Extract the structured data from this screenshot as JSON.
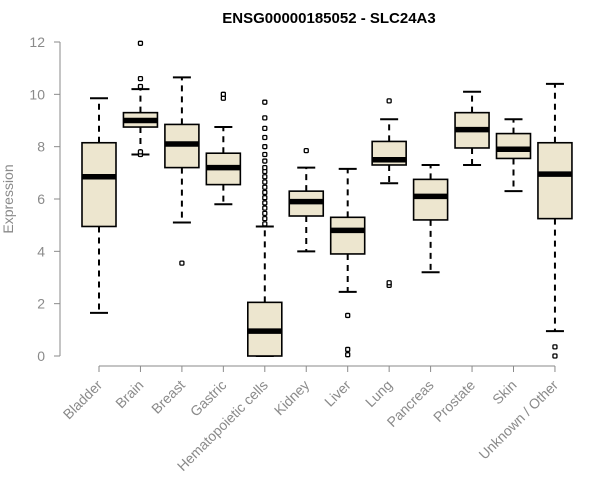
{
  "chart_data": {
    "type": "boxplot",
    "title": "ENSG00000185052 - SLC24A3",
    "xlabel": "",
    "ylabel": "Expression",
    "ylim": [
      0,
      12
    ],
    "yticks": [
      0,
      2,
      4,
      6,
      8,
      10,
      12
    ],
    "box_color": "#ede6cf",
    "categories": [
      "Bladder",
      "Brain",
      "Breast",
      "Gastric",
      "Hematopoietic cells",
      "Kidney",
      "Liver",
      "Lung",
      "Pancreas",
      "Prostate",
      "Skin",
      "Unknown / Other"
    ],
    "series": [
      {
        "name": "Bladder",
        "min": 1.65,
        "q1": 4.95,
        "median": 6.85,
        "q3": 8.15,
        "max": 9.85,
        "outliers": []
      },
      {
        "name": "Brain",
        "min": 7.7,
        "q1": 8.75,
        "median": 9.0,
        "q3": 9.3,
        "max": 10.2,
        "outliers": [
          7.7,
          7.8,
          10.3,
          10.6,
          11.95
        ]
      },
      {
        "name": "Breast",
        "min": 5.1,
        "q1": 7.2,
        "median": 8.1,
        "q3": 8.85,
        "max": 10.65,
        "outliers": [
          3.55
        ]
      },
      {
        "name": "Gastric",
        "min": 5.8,
        "q1": 6.55,
        "median": 7.2,
        "q3": 7.75,
        "max": 8.75,
        "outliers": [
          9.85,
          10.0
        ]
      },
      {
        "name": "Hematopoietic cells",
        "min": 0.0,
        "q1": 0.0,
        "median": 0.95,
        "q3": 2.05,
        "max": 4.95,
        "outliers": [
          5.05,
          5.25,
          5.45,
          5.65,
          5.85,
          6.05,
          6.25,
          6.45,
          6.65,
          6.85,
          7.05,
          7.2,
          7.45,
          7.7,
          8.0,
          8.35,
          8.7,
          9.1,
          9.7
        ]
      },
      {
        "name": "Kidney",
        "min": 4.0,
        "q1": 5.35,
        "median": 5.9,
        "q3": 6.3,
        "max": 7.2,
        "outliers": [
          7.85
        ]
      },
      {
        "name": "Liver",
        "min": 2.45,
        "q1": 3.9,
        "median": 4.8,
        "q3": 5.3,
        "max": 7.15,
        "outliers": [
          0.05,
          0.25,
          1.55
        ]
      },
      {
        "name": "Lung",
        "min": 6.6,
        "q1": 7.3,
        "median": 7.5,
        "q3": 8.2,
        "max": 9.05,
        "outliers": [
          2.7,
          2.8,
          9.75
        ]
      },
      {
        "name": "Pancreas",
        "min": 3.2,
        "q1": 5.2,
        "median": 6.1,
        "q3": 6.75,
        "max": 7.3,
        "outliers": []
      },
      {
        "name": "Prostate",
        "min": 7.3,
        "q1": 7.95,
        "median": 8.65,
        "q3": 9.3,
        "max": 10.1,
        "outliers": []
      },
      {
        "name": "Skin",
        "min": 6.3,
        "q1": 7.55,
        "median": 7.9,
        "q3": 8.5,
        "max": 9.05,
        "outliers": []
      },
      {
        "name": "Unknown / Other",
        "min": 0.95,
        "q1": 5.25,
        "median": 6.95,
        "q3": 8.15,
        "max": 10.4,
        "outliers": [
          0.0,
          0.35
        ]
      }
    ]
  }
}
